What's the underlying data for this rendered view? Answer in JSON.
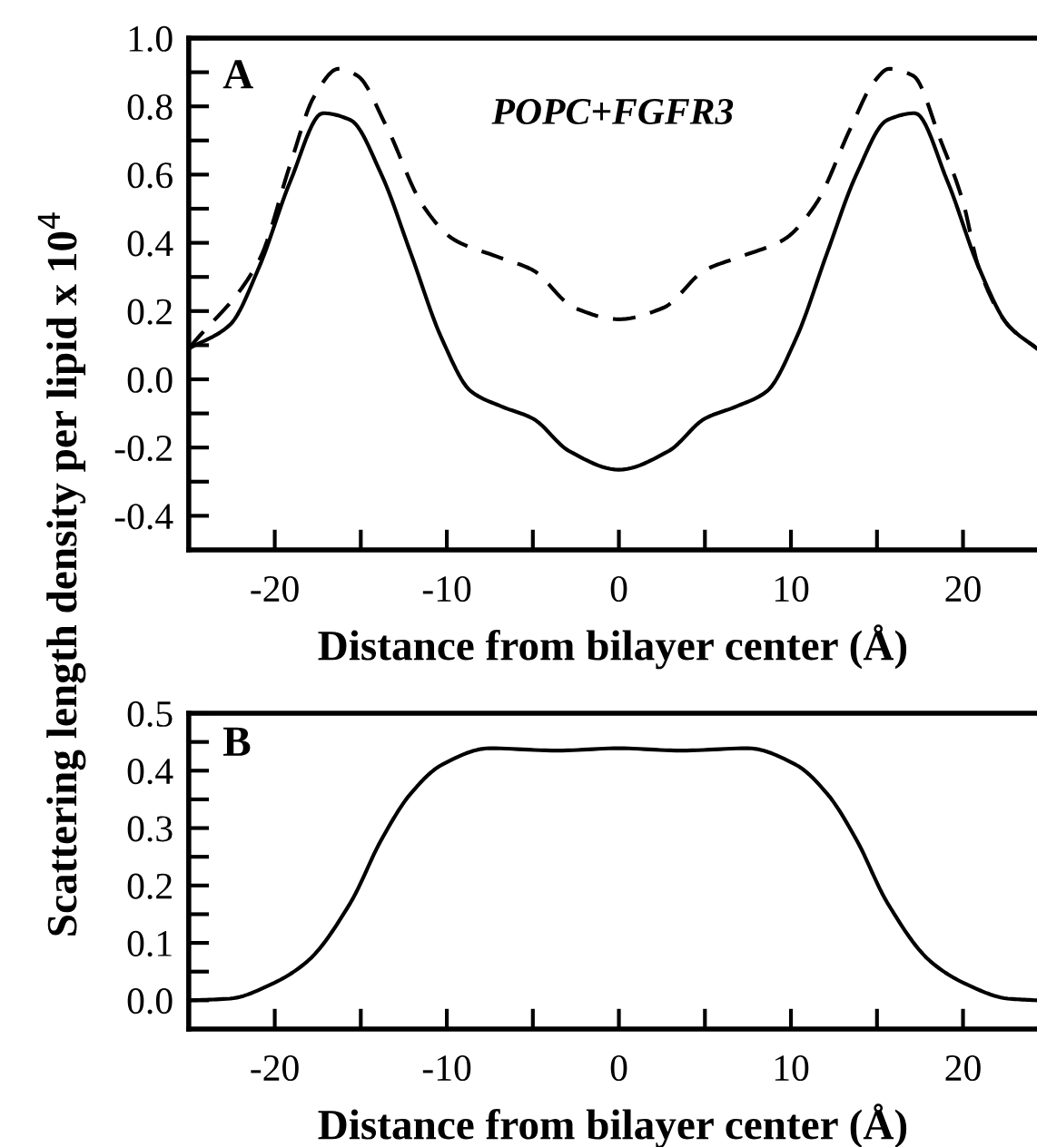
{
  "chart_data": [
    {
      "type": "line",
      "xlabel": "Distance from bilayer center (Å)",
      "ylabel": "Scattering length density per lipid x 10$^{4}$",
      "xlim": [
        -25,
        24.3
      ],
      "ylim": [
        -0.5,
        1.0
      ],
      "xticks": [
        -20,
        {
          "value": -15,
          "label": null
        },
        -10,
        {
          "value": -5,
          "label": null
        },
        0,
        {
          "value": 5,
          "label": null
        },
        10,
        {
          "value": 15,
          "label": null
        },
        20
      ],
      "yticks": [
        -0.4,
        {
          "value": -0.3,
          "label": null
        },
        -0.2,
        {
          "value": -0.1,
          "label": null
        },
        {
          "value": 0,
          "label": "0.0"
        },
        {
          "value": 0.1,
          "label": null
        },
        0.2,
        {
          "value": 0.3,
          "label": null
        },
        0.4,
        {
          "value": 0.5,
          "label": null
        },
        0.6,
        {
          "value": 0.7,
          "label": null
        },
        0.8,
        {
          "value": 0.9,
          "label": null
        },
        {
          "value": 1,
          "label": "1.0"
        }
      ],
      "annotations": [
        "A",
        "POPC+FGFR3"
      ],
      "grid": false,
      "legend": false,
      "marker": "none",
      "series": [
        {
          "color": "#000000",
          "line_style": "solid",
          "x": [
            -25,
            -22.6,
            -20.9,
            -19.1,
            -17.2,
            -15.6,
            -13.8,
            -12.1,
            -10.3,
            -8.6,
            -6.8,
            -5.0,
            -2.9,
            0,
            2.9,
            5.0,
            6.8,
            8.6,
            10.3,
            12.1,
            13.8,
            15.6,
            17.2,
            19.1,
            20.9,
            22.6,
            24.3
          ],
          "values": [
            0.09,
            0.16,
            0.33,
            0.58,
            0.78,
            0.76,
            0.6,
            0.37,
            0.12,
            -0.035,
            -0.08,
            -0.115,
            -0.21,
            -0.265,
            -0.21,
            -0.115,
            -0.08,
            -0.035,
            0.12,
            0.37,
            0.6,
            0.76,
            0.78,
            0.58,
            0.33,
            0.16,
            0.09
          ]
        },
        {
          "color": "#000000",
          "line_style": "dashed",
          "x": [
            -25,
            -20.9,
            -19.1,
            -17.7,
            -16.3,
            -15.2,
            -13.5,
            -11.4,
            -9.6,
            -7.1,
            -5.0,
            -2.6,
            0,
            2.6,
            5.0,
            7.1,
            9.6,
            11.4,
            13.5,
            14.8,
            15.7,
            17.1,
            18.7,
            20.0,
            20.9,
            22.6,
            24.3
          ],
          "values": [
            0.09,
            0.35,
            0.63,
            0.83,
            0.91,
            0.89,
            0.74,
            0.51,
            0.41,
            0.36,
            0.32,
            0.21,
            0.176,
            0.21,
            0.32,
            0.36,
            0.41,
            0.51,
            0.74,
            0.87,
            0.91,
            0.89,
            0.7,
            0.52,
            0.33,
            0.16,
            0.09
          ]
        }
      ]
    },
    {
      "type": "line",
      "xlabel": "Distance from bilayer center (Å)",
      "xlim": [
        -25,
        24.3
      ],
      "ylim": [
        -0.05,
        0.5
      ],
      "xticks": [
        -20,
        {
          "value": -15,
          "label": null
        },
        -10,
        {
          "value": -5,
          "label": null
        },
        0,
        {
          "value": 5,
          "label": null
        },
        10,
        {
          "value": 15,
          "label": null
        },
        20
      ],
      "yticks": [
        {
          "value": 0,
          "label": "0.0"
        },
        {
          "value": 0.05,
          "label": null
        },
        0.1,
        {
          "value": 0.15,
          "label": null
        },
        0.2,
        {
          "value": 0.25,
          "label": null
        },
        0.3,
        {
          "value": 0.35,
          "label": null
        },
        0.4,
        {
          "value": 0.45,
          "label": null
        },
        0.5
      ],
      "annotations": [
        "B"
      ],
      "grid": false,
      "legend": false,
      "marker": "none",
      "series": [
        {
          "color": "#000000",
          "line_style": "solid",
          "x": [
            -25,
            -22.6,
            -20.2,
            -18.1,
            -15.6,
            -13.8,
            -12.1,
            -10.3,
            -7.5,
            -3.6,
            0,
            3.6,
            7.5,
            10.3,
            12.1,
            13.8,
            15.6,
            18.1,
            20.2,
            22.6,
            24.3
          ],
          "values": [
            0.0,
            0.003,
            0.028,
            0.068,
            0.17,
            0.28,
            0.36,
            0.41,
            0.439,
            0.435,
            0.439,
            0.435,
            0.439,
            0.41,
            0.36,
            0.28,
            0.17,
            0.068,
            0.028,
            0.003,
            0.0
          ]
        }
      ]
    }
  ]
}
